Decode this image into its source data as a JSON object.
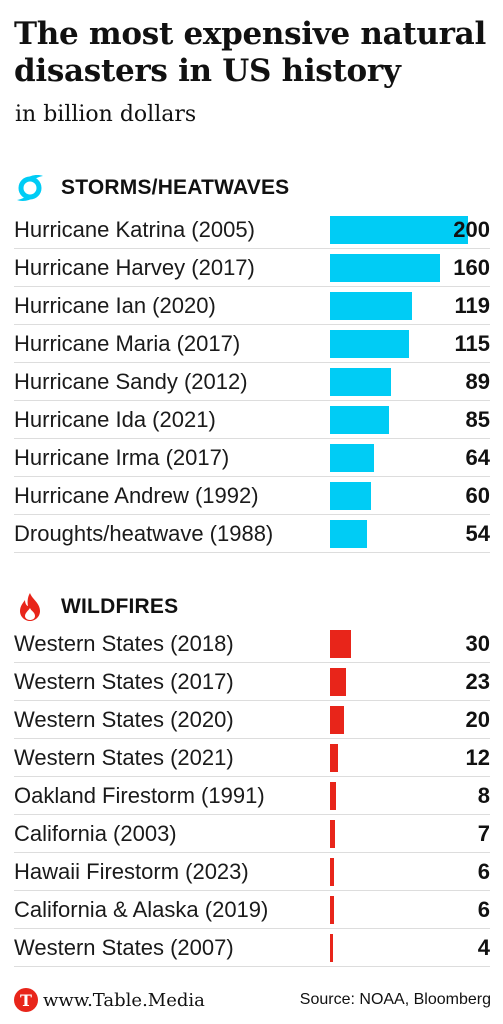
{
  "title": "The most expensive natural disasters in US history",
  "subtitle": "in billion dollars",
  "colors": {
    "storms": "#00ccf5",
    "wildfires": "#e8251a",
    "logo": "#e8251a"
  },
  "chart_data": [
    {
      "type": "bar",
      "title": "STORMS/HEATWAVES",
      "icon": "hurricane-icon",
      "xlim": [
        0,
        200
      ],
      "categories": [
        "Hurricane Katrina (2005)",
        "Hurricane Harvey (2017)",
        "Hurricane Ian (2020)",
        "Hurricane Maria (2017)",
        "Hurricane Sandy (2012)",
        "Hurricane Ida (2021)",
        "Hurricane Irma (2017)",
        "Hurricane Andrew (1992)",
        "Droughts/heatwave (1988)"
      ],
      "values": [
        200,
        160,
        119,
        115,
        89,
        85,
        64,
        60,
        54
      ]
    },
    {
      "type": "bar",
      "title": "WILDFIRES",
      "icon": "fire-icon",
      "xlim": [
        0,
        200
      ],
      "categories": [
        "Western States (2018)",
        "Western States (2017)",
        "Western States (2020)",
        "Western States (2021)",
        "Oakland Firestorm (1991)",
        "California (2003)",
        "Hawaii Firestorm (2023)",
        "California & Alaska (2019)",
        "Western States (2007)"
      ],
      "values": [
        30,
        23,
        20,
        12,
        8,
        7,
        6,
        6,
        4
      ]
    }
  ],
  "footer": {
    "brand": "www.Table.Media",
    "logo_letter": "T",
    "source": "Source: NOAA, Bloomberg"
  }
}
